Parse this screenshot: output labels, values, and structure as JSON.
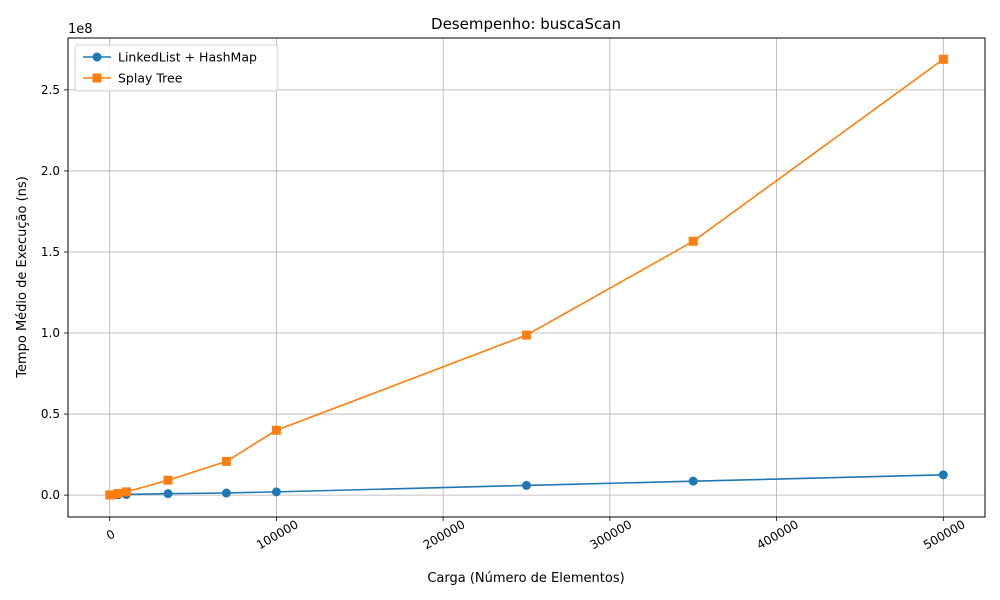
{
  "chart_data": {
    "type": "line",
    "title": "Desempenho: buscaScan",
    "xlabel": "Carga (Número de Elementos)",
    "ylabel": "Tempo Médio de Execução (ns)",
    "y_scale_label": "1e8",
    "xlim": [
      -25000,
      525000
    ],
    "ylim": [
      -13500000,
      282000000
    ],
    "x_ticks": [
      0,
      100000,
      200000,
      300000,
      400000,
      500000
    ],
    "x_tick_labels": [
      "0",
      "100000",
      "200000",
      "300000",
      "400000",
      "500000"
    ],
    "y_ticks": [
      0,
      50000000,
      100000000,
      150000000,
      200000000,
      250000000
    ],
    "y_tick_labels": [
      "0.0",
      "0.5",
      "1.0",
      "1.5",
      "2.0",
      "2.5"
    ],
    "grid": true,
    "legend_position": "top-left",
    "series": [
      {
        "name": "LinkedList + HashMap",
        "color": "#1f77b4",
        "marker": "circle",
        "x": [
          100,
          1000,
          5000,
          10000,
          35000,
          70000,
          100000,
          250000,
          350000,
          500000
        ],
        "y": [
          10000,
          50000,
          200000,
          400000,
          900000,
          1300000,
          2000000,
          6000000,
          8600000,
          12500000
        ]
      },
      {
        "name": "Splay Tree",
        "color": "#ff7f0e",
        "marker": "square",
        "x": [
          100,
          1000,
          5000,
          10000,
          35000,
          70000,
          100000,
          250000,
          350000,
          500000
        ],
        "y": [
          20000,
          200000,
          1000000,
          2000000,
          9200000,
          20800000,
          40000000,
          98700000,
          156600000,
          268900000
        ]
      }
    ]
  }
}
